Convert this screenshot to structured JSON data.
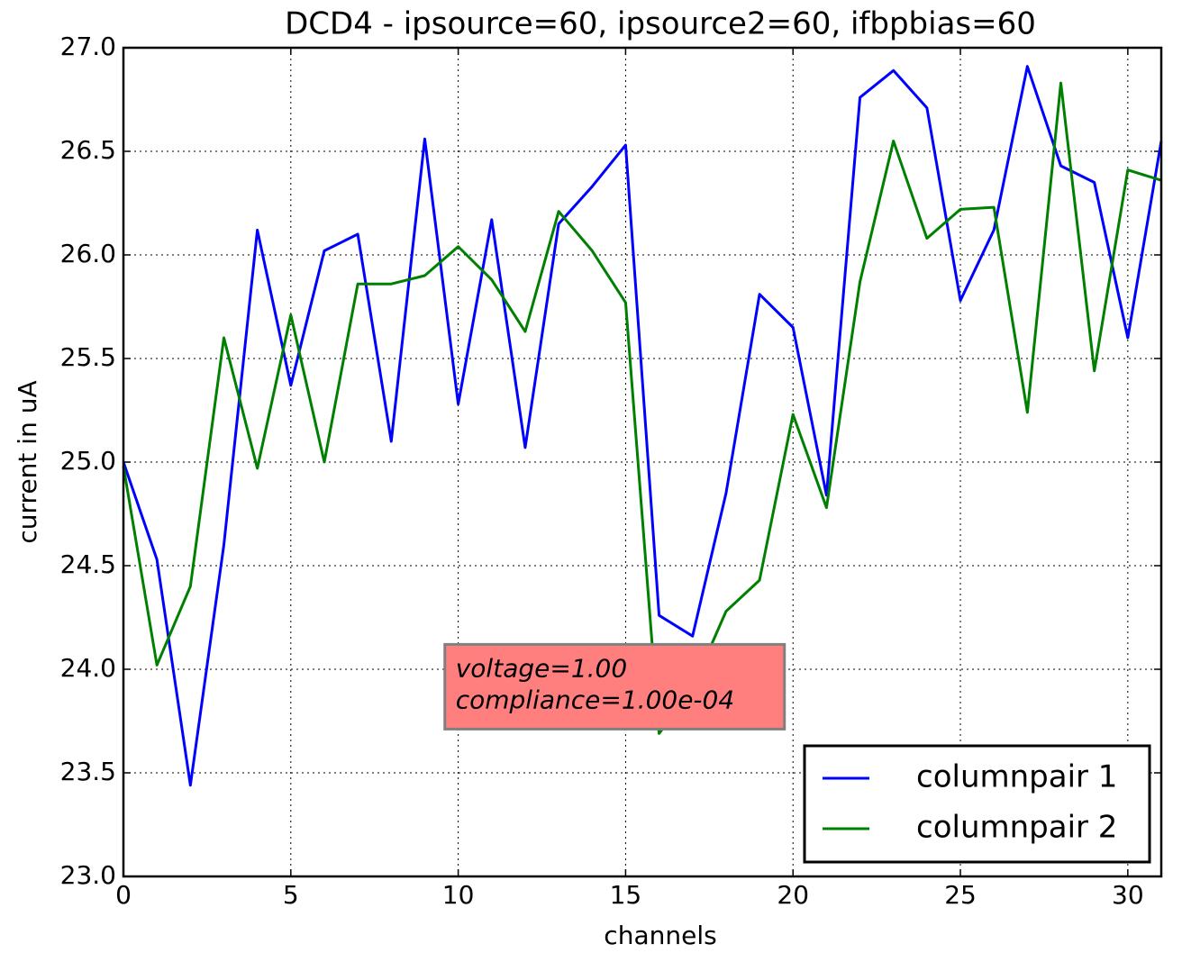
{
  "chart_data": {
    "type": "line",
    "title": "DCD4 - ipsource=60, ipsource2=60, ifbpbias=60",
    "xlabel": "channels",
    "ylabel": "current in uA",
    "x": [
      0,
      1,
      2,
      3,
      4,
      5,
      6,
      7,
      8,
      9,
      10,
      11,
      12,
      13,
      14,
      15,
      16,
      17,
      18,
      19,
      20,
      21,
      22,
      23,
      24,
      25,
      26,
      27,
      28,
      29,
      30,
      31
    ],
    "series": [
      {
        "name": "columnpair 1",
        "color": "#0000ff",
        "values": [
          25.0,
          24.53,
          23.44,
          24.6,
          26.12,
          25.37,
          26.02,
          26.1,
          25.1,
          26.56,
          25.28,
          26.17,
          25.07,
          26.15,
          26.33,
          26.53,
          24.26,
          24.16,
          24.85,
          25.81,
          25.65,
          24.84,
          26.76,
          26.89,
          26.71,
          25.78,
          26.12,
          26.91,
          26.43,
          26.35,
          25.6,
          26.55
        ]
      },
      {
        "name": "columnpair 2",
        "color": "#008000",
        "values": [
          24.98,
          24.02,
          24.4,
          25.6,
          24.97,
          25.71,
          25.0,
          25.86,
          25.86,
          25.9,
          26.04,
          25.88,
          25.63,
          26.21,
          26.02,
          25.77,
          23.69,
          23.91,
          24.28,
          24.43,
          25.23,
          24.78,
          25.87,
          26.55,
          26.08,
          26.22,
          26.23,
          25.24,
          26.83,
          25.44,
          26.41,
          26.36
        ]
      }
    ],
    "xlim": [
      0,
      31
    ],
    "xticks": [
      0,
      5,
      10,
      15,
      20,
      25,
      30
    ],
    "ylim": [
      23,
      27
    ],
    "yticks": [
      {
        "value": 23,
        "label": "23.0"
      },
      23.5,
      {
        "value": 24,
        "label": "24.0"
      },
      24.5,
      {
        "value": 25,
        "label": "25.0"
      },
      25.5,
      {
        "value": 26,
        "label": "26.0"
      },
      26.5,
      {
        "value": 27,
        "label": "27.0"
      }
    ],
    "grid": true,
    "legend": "lower right",
    "annotation": {
      "lines": [
        "voltage=1.00",
        "compliance=1.00e-04"
      ],
      "color": "#ff7f7f"
    }
  }
}
